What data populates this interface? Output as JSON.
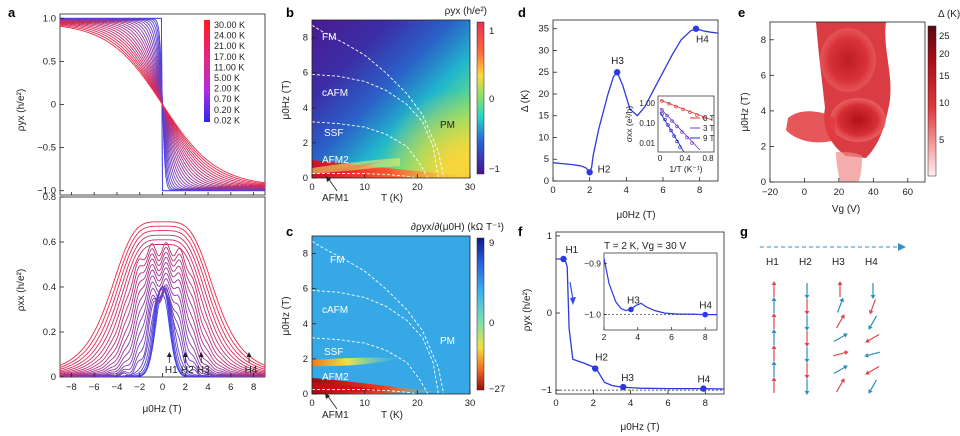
{
  "chart_data": [
    {
      "id": "a",
      "type": "line",
      "panel_label": "a",
      "top": {
        "ylabel": "ρyx (h/e²)",
        "ylim": [
          -1.05,
          1.05
        ],
        "yticks": [
          "1.0",
          "0.5",
          "0",
          "−0.5",
          "−1.0"
        ],
        "legend": [
          "30.00 K",
          "24.00 K",
          "21.00 K",
          "17.00 K",
          "11.00 K",
          "5.00 K",
          "2.00 K",
          "0.70 K",
          "0.20 K",
          "0.02 K"
        ]
      },
      "bottom": {
        "ylabel": "ρxx (h/e²)",
        "ylim": [
          0,
          0.8
        ],
        "yticks": [
          "0.8",
          "0.6",
          "0.4",
          "0.2",
          "0"
        ],
        "markers": [
          "H1",
          "H2",
          "H3",
          "H4"
        ],
        "marker_x": [
          0.6,
          2.0,
          3.4,
          7.6
        ]
      },
      "xlabel": "μ0Hz (T)",
      "xlim": [
        -9,
        9
      ],
      "xticks": [
        "−8",
        "−6",
        "−4",
        "−2",
        "0",
        "2",
        "4",
        "6",
        "8"
      ],
      "temperatures_K": [
        30,
        24,
        21,
        17,
        11,
        5,
        2,
        0.7,
        0.2,
        0.02
      ]
    },
    {
      "id": "b",
      "type": "heatmap",
      "panel_label": "b",
      "colorbar_title": "ρyx (h/e²)",
      "colorbar_ticks": [
        "1",
        "0",
        "−1"
      ],
      "xlabel": "T (K)",
      "ylabel": "μ0Hz (T)",
      "xlim": [
        0,
        30
      ],
      "ylim": [
        0,
        9
      ],
      "xticks": [
        "0",
        "10",
        "20",
        "30"
      ],
      "yticks": [
        "0",
        "2",
        "4",
        "6",
        "8"
      ],
      "regions": [
        "FM",
        "cAFM",
        "SSF",
        "AFM2",
        "PM",
        "AFM1"
      ],
      "boundaries_T": [
        [
          0,
          2.2,
          6,
          10,
          14,
          18,
          21,
          24,
          25
        ],
        [
          0,
          5,
          10,
          14,
          18,
          21,
          23,
          24
        ],
        [
          0,
          5,
          10,
          14,
          18,
          20.5,
          22
        ],
        [
          0,
          5,
          10,
          14,
          18,
          20
        ]
      ],
      "boundaries_H": [
        [
          8.7,
          8.3,
          7.7,
          7.0,
          6.0,
          4.8,
          3.6,
          1.5,
          0
        ],
        [
          5.9,
          5.8,
          5.5,
          5.0,
          4.2,
          3.2,
          1.8,
          0
        ],
        [
          3.2,
          3.1,
          2.9,
          2.5,
          1.8,
          0.8,
          0
        ],
        [
          0.25,
          0.25,
          0.25,
          0.2,
          0.1,
          0
        ]
      ]
    },
    {
      "id": "c",
      "type": "heatmap",
      "panel_label": "c",
      "colorbar_title": "∂ρyx/∂(μ0H) (kΩ T⁻¹)",
      "colorbar_ticks": [
        "9",
        "0",
        "−27"
      ],
      "xlabel": "T (K)",
      "ylabel": "μ0Hz (T)",
      "xlim": [
        0,
        30
      ],
      "ylim": [
        0,
        9
      ],
      "xticks": [
        "0",
        "10",
        "20",
        "30"
      ],
      "yticks": [
        "0",
        "2",
        "4",
        "6",
        "8"
      ],
      "regions": [
        "FM",
        "cAFM",
        "SSF",
        "AFM2",
        "PM",
        "AFM1"
      ]
    },
    {
      "id": "d",
      "type": "line",
      "panel_label": "d",
      "xlabel": "μ0Hz (T)",
      "ylabel": "Δ (K)",
      "xlim": [
        0,
        9
      ],
      "ylim": [
        0,
        37
      ],
      "xticks": [
        "0",
        "2",
        "4",
        "6",
        "8"
      ],
      "yticks": [
        "0",
        "5",
        "10",
        "15",
        "20",
        "25",
        "30",
        "35"
      ],
      "series": [
        {
          "name": "Δ",
          "x": [
            0,
            0.5,
            1.0,
            1.5,
            1.8,
            2.0,
            2.1,
            2.2,
            2.5,
            3.0,
            3.3,
            3.5,
            3.8,
            4.2,
            4.6,
            5.0,
            5.5,
            6.0,
            6.5,
            7.0,
            7.5,
            7.8,
            8.2,
            8.6,
            9.0
          ],
          "y": [
            4.2,
            4.0,
            3.8,
            3.5,
            3.0,
            2.0,
            3.0,
            6.0,
            12,
            20,
            24,
            25,
            22,
            16.5,
            15,
            17,
            21,
            25,
            29,
            32.5,
            34.5,
            35,
            34.5,
            34.2,
            34
          ]
        }
      ],
      "labels": [
        "H2",
        "H3",
        "H4"
      ],
      "inset": {
        "xlabel": "1/T (K⁻¹)",
        "ylabel": "σxx (e²/h)",
        "xticks": [
          "0",
          "0.4",
          "0.8"
        ],
        "yticks": [
          "1.00",
          "0.10",
          "0.01"
        ],
        "legend": [
          "0 T",
          "3 T",
          "9 T"
        ]
      }
    },
    {
      "id": "e",
      "type": "heatmap",
      "panel_label": "e",
      "colorbar_title": "Δ (K)",
      "colorbar_ticks": [
        "25",
        "20",
        "15",
        "10",
        "5"
      ],
      "xlabel": "Vg (V)",
      "ylabel": "μ0Hz (T)",
      "xlim": [
        -20,
        70
      ],
      "ylim": [
        0,
        9
      ],
      "xticks": [
        "−20",
        "0",
        "20",
        "40",
        "60"
      ],
      "yticks": [
        "0",
        "2",
        "4",
        "6",
        "8"
      ]
    },
    {
      "id": "f",
      "type": "line",
      "panel_label": "f",
      "title": "T = 2 K, Vg = 30 V",
      "xlabel": "μ0Hz (T)",
      "ylabel": "ρyx (h/e²)",
      "xlim": [
        0,
        9
      ],
      "ylim": [
        -1.05,
        1.05
      ],
      "xticks": [
        "0",
        "2",
        "4",
        "6",
        "8"
      ],
      "yticks": [
        "1",
        "0",
        "−1"
      ],
      "series": [
        {
          "name": "ρyx",
          "x": [
            0,
            0.3,
            0.5,
            0.6,
            0.7,
            0.9,
            1.5,
            2.0,
            2.2,
            2.6,
            3.0,
            3.5,
            4.5,
            6,
            7.8,
            9
          ],
          "y": [
            0.7,
            0.7,
            0.68,
            0.6,
            -0.2,
            -0.6,
            -0.65,
            -0.7,
            -0.74,
            -0.9,
            -0.94,
            -0.96,
            -0.975,
            -0.98,
            -0.98,
            -0.985
          ]
        }
      ],
      "labels": [
        "H1",
        "H2",
        "H3",
        "H4"
      ],
      "inset": {
        "xticks": [
          "2",
          "4",
          "6",
          "8"
        ],
        "yticks": [
          "−0.9",
          "−1.0"
        ],
        "labels": [
          "H3",
          "H4"
        ]
      }
    },
    {
      "id": "g",
      "type": "diagram",
      "panel_label": "g",
      "columns": [
        "H1",
        "H2",
        "H3",
        "H4"
      ],
      "layer_angles_deg": [
        [
          0,
          180,
          0,
          180
        ],
        [
          0,
          180,
          20,
          200
        ],
        [
          0,
          180,
          30,
          210
        ],
        [
          0,
          180,
          60,
          240
        ],
        [
          0,
          180,
          75,
          255
        ],
        [
          0,
          180,
          60,
          240
        ],
        [
          0,
          180,
          30,
          210
        ]
      ],
      "colors": {
        "odd_layer": "#d44b52",
        "even_layer": "#2b8fbf",
        "arrow_line": "#3a8fc8"
      }
    }
  ]
}
